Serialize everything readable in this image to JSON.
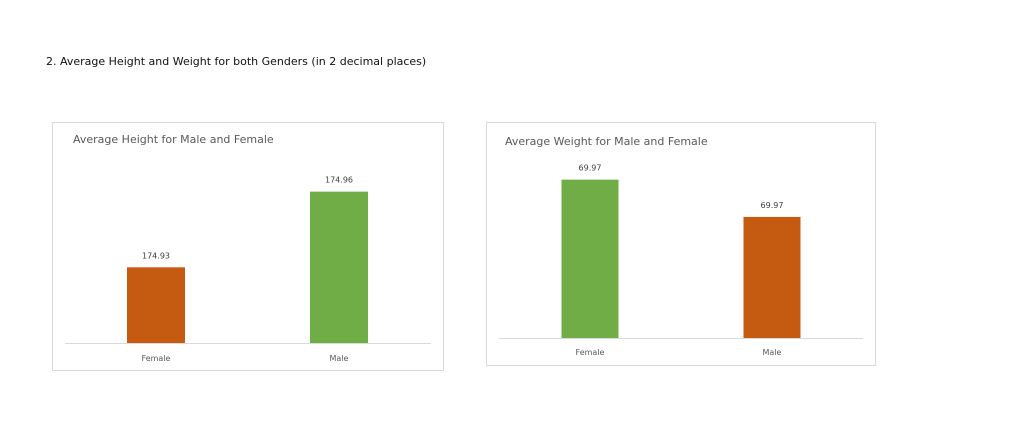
{
  "page": {
    "heading": "2. Average Height and Weight for both Genders (in 2 decimal places)"
  },
  "colors": {
    "male": "#70ad47",
    "female": "#c55a11"
  },
  "chart_data": [
    {
      "type": "bar",
      "title": "Average Height for Male and Female",
      "categories": [
        "Female",
        "Male"
      ],
      "values": [
        174.93,
        174.96
      ],
      "value_labels": [
        "174.93",
        "174.96"
      ],
      "bar_colors": [
        "#c55a11",
        "#70ad47"
      ],
      "ylim": [
        174.9,
        174.965
      ],
      "grid": false,
      "legend": "none"
    },
    {
      "type": "bar",
      "title": "Average Weight for Male and Female",
      "categories": [
        "Female",
        "Male"
      ],
      "values": [
        69.974,
        69.966
      ],
      "value_labels": [
        "69.97",
        "69.97"
      ],
      "bar_colors": [
        "#70ad47",
        "#c55a11"
      ],
      "ylim": [
        69.94,
        69.975
      ],
      "grid": false,
      "legend": "none"
    }
  ]
}
